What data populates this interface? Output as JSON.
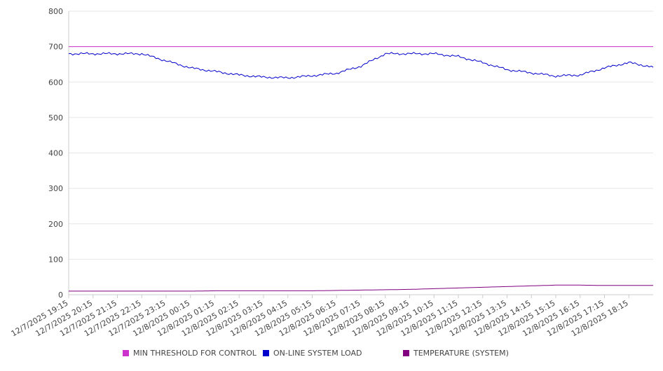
{
  "chart_data": {
    "type": "line",
    "ylim": [
      0,
      800
    ],
    "yticks": [
      0,
      100,
      200,
      300,
      400,
      500,
      600,
      700,
      800
    ],
    "xtick_labels": [
      "12/7/2025 19:15",
      "12/7/2025 20:15",
      "12/7/2025 21:15",
      "12/7/2025 22:15",
      "12/7/2025 23:15",
      "12/8/2025 00:15",
      "12/8/2025 01:15",
      "12/8/2025 02:15",
      "12/8/2025 03:15",
      "12/8/2025 04:15",
      "12/8/2025 05:15",
      "12/8/2025 06:15",
      "12/8/2025 07:15",
      "12/8/2025 08:15",
      "12/8/2025 09:15",
      "12/8/2025 10:15",
      "12/8/2025 11:15",
      "12/8/2025 12:15",
      "12/8/2025 13:15",
      "12/8/2025 14:15",
      "12/8/2025 15:15",
      "12/8/2025 16:15",
      "12/8/2025 17:15",
      "12/8/2025 18:15"
    ],
    "grid": true,
    "legend_position": "bottom",
    "series": [
      {
        "name": "MIN THRESHOLD FOR CONTROL",
        "color": "#cc33cc",
        "values": [
          700,
          700,
          700,
          700,
          700,
          700,
          700,
          700,
          700,
          700,
          700,
          700,
          700,
          700,
          700,
          700,
          700,
          700,
          700,
          700,
          700,
          700,
          700,
          700,
          700
        ]
      },
      {
        "name": "ON-LINE SYSTEM LOAD",
        "color": "#0000cc",
        "values": [
          680,
          680,
          680,
          680,
          660,
          640,
          630,
          620,
          614,
          612,
          618,
          625,
          645,
          680,
          680,
          680,
          672,
          655,
          635,
          626,
          617,
          620,
          640,
          655,
          642
        ]
      },
      {
        "name": "TEMPERATURE (SYSTEM)",
        "color": "#800080",
        "values": [
          10,
          10,
          10,
          10,
          10,
          10,
          11,
          11,
          11,
          11,
          11,
          12,
          13,
          14,
          15,
          17,
          19,
          21,
          23,
          25,
          27,
          27,
          26,
          26,
          26
        ]
      }
    ]
  }
}
